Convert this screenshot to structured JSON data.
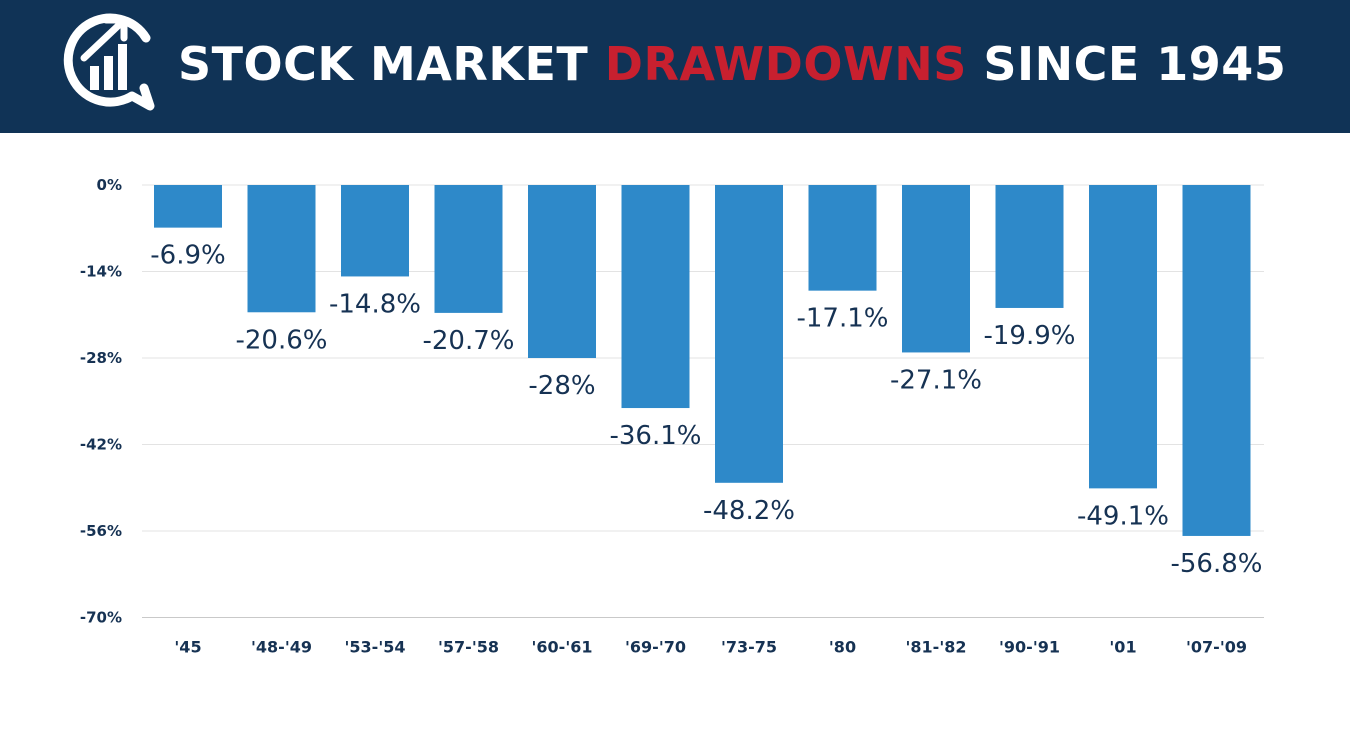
{
  "header": {
    "title_part1": "STOCK MARKET ",
    "title_highlight": "DRAWDOWNS",
    "title_part2": " SINCE 1945",
    "logo_icon": "chart-bubble-icon"
  },
  "colors": {
    "header_bg": "#103356",
    "highlight": "#c8202f",
    "bar": "#2e89c9",
    "label_text": "#163253"
  },
  "chart_data": {
    "type": "bar",
    "categories": [
      "'45",
      "'48-'49",
      "'53-'54",
      "'57-'58",
      "'60-'61",
      "'69-'70",
      "'73-75",
      "'80",
      "'81-'82",
      "'90-'91",
      "'01",
      "'07-'09"
    ],
    "values": [
      -6.9,
      -20.6,
      -14.8,
      -20.7,
      -28,
      -36.1,
      -48.2,
      -17.1,
      -27.1,
      -19.9,
      -49.1,
      -56.8
    ],
    "data_labels": [
      "-6.9%",
      "-20.6%",
      "-14.8%",
      "-20.7%",
      "-28%",
      "-36.1%",
      "-48.2%",
      "-17.1%",
      "-27.1%",
      "-19.9%",
      "-49.1%",
      "-56.8%"
    ],
    "y_ticks": [
      0,
      -14,
      -28,
      -42,
      -56,
      -70
    ],
    "y_tick_labels": [
      "0%",
      "-14%",
      "-28%",
      "-42%",
      "-56%",
      "-70%"
    ],
    "ylim": [
      -70,
      0
    ],
    "grid": true,
    "legend": "none"
  }
}
